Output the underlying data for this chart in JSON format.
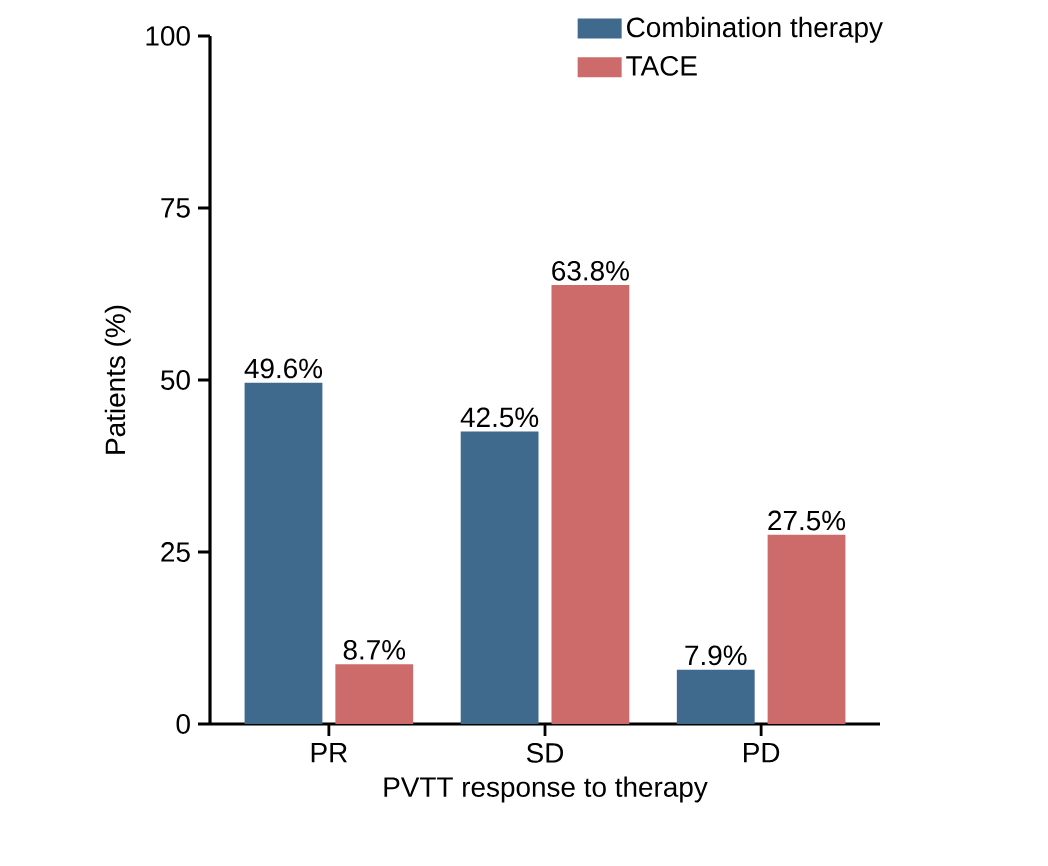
{
  "chart_data": {
    "type": "bar",
    "xlabel": "PVTT response to therapy",
    "ylabel": "Patients (%)",
    "categories": [
      "PR",
      "SD",
      "PD"
    ],
    "series": [
      {
        "name": "Combination therapy",
        "color": "#3f6a8e",
        "values": [
          49.6,
          42.5,
          7.9
        ],
        "value_labels": [
          "49.6%",
          "42.5%",
          "7.9%"
        ]
      },
      {
        "name": "TACE",
        "color": "#cd6b6b",
        "values": [
          8.7,
          63.8,
          27.5
        ],
        "value_labels": [
          "8.7%",
          "63.8%",
          "27.5%"
        ]
      }
    ],
    "ylim": [
      0,
      100
    ],
    "yticks": [
      0,
      25,
      50,
      75,
      100
    ],
    "legend": "top right",
    "grid": false
  }
}
